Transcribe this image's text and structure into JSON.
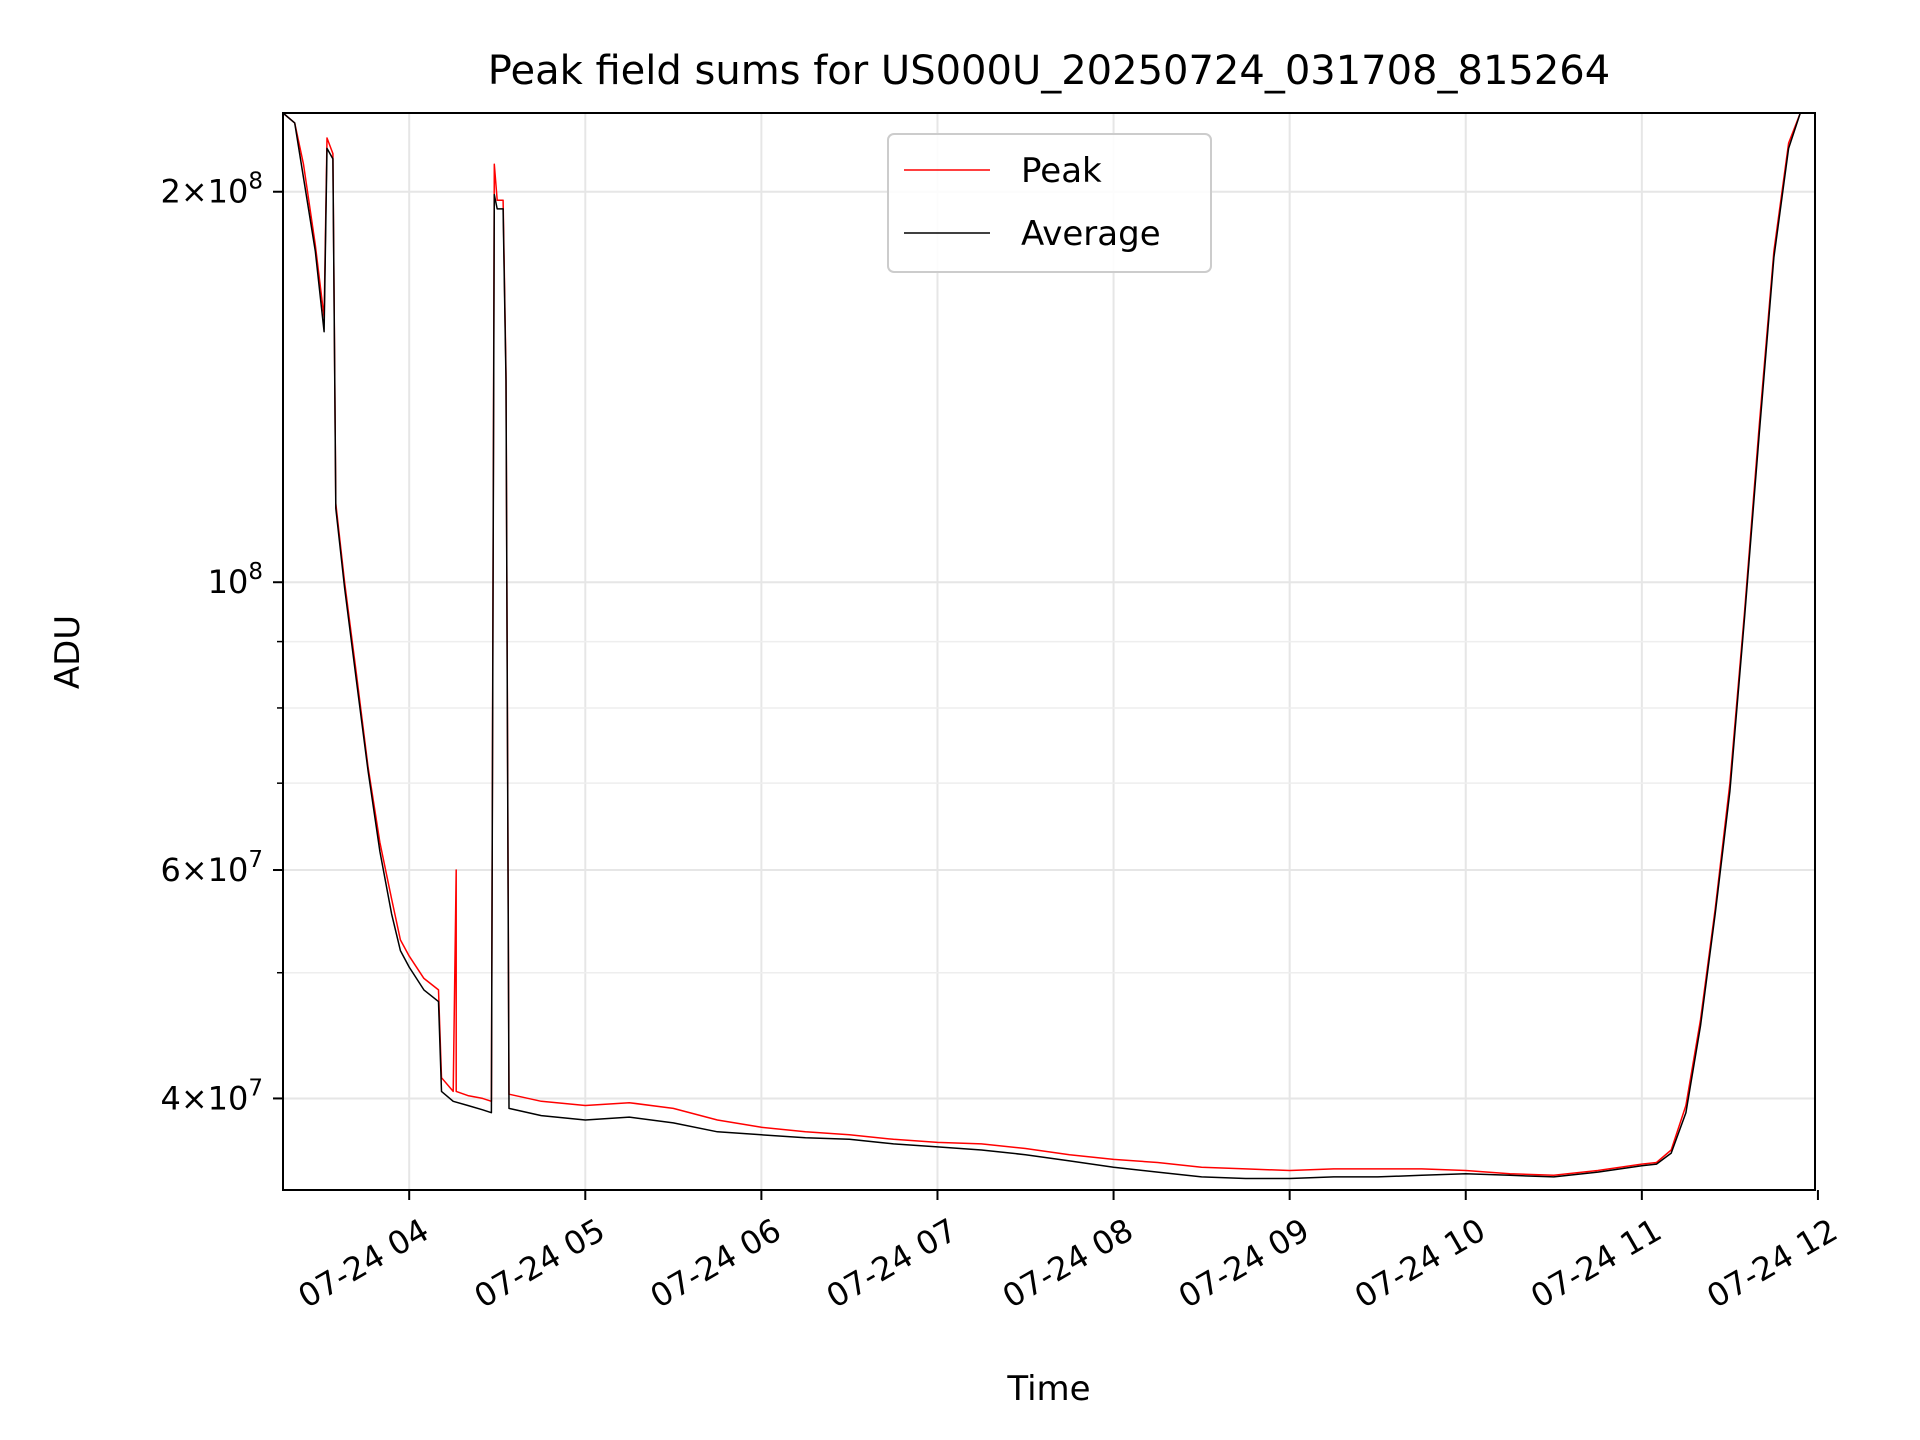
{
  "chart_data": {
    "type": "line",
    "title": "Peak field sums for US000U_20250724_031708_815264",
    "xlabel": "Time",
    "ylabel": "ADU",
    "x_scale": "time",
    "y_scale": "log",
    "xlim": [
      "07-24 03:17",
      "07-24 11:59"
    ],
    "ylim": [
      34000000,
      230000000
    ],
    "grid": true,
    "legend_position": "upper center",
    "x_ticks": [
      {
        "value": "07-24 04:00",
        "label": "07-24 04"
      },
      {
        "value": "07-24 05:00",
        "label": "07-24 05"
      },
      {
        "value": "07-24 06:00",
        "label": "07-24 06"
      },
      {
        "value": "07-24 07:00",
        "label": "07-24 07"
      },
      {
        "value": "07-24 08:00",
        "label": "07-24 08"
      },
      {
        "value": "07-24 09:00",
        "label": "07-24 09"
      },
      {
        "value": "07-24 10:00",
        "label": "07-24 10"
      },
      {
        "value": "07-24 11:00",
        "label": "07-24 11"
      },
      {
        "value": "07-24 12:00",
        "label": "07-24 12"
      }
    ],
    "y_major_ticks": [
      {
        "value": 40000000,
        "mant": "4",
        "exp": "7"
      },
      {
        "value": 60000000,
        "mant": "6",
        "exp": "7"
      },
      {
        "value": 100000000,
        "mant": "",
        "exp": "8"
      },
      {
        "value": 200000000,
        "mant": "2",
        "exp": "8"
      }
    ],
    "y_minor_ticks": [
      50000000,
      70000000,
      80000000,
      90000000
    ],
    "series": [
      {
        "name": "Peak",
        "color": "#ff0000",
        "points": [
          [
            "07-24 03:17",
            230000000
          ],
          [
            "07-24 03:21",
            226000000
          ],
          [
            "07-24 03:24",
            210000000
          ],
          [
            "07-24 03:28",
            182000000
          ],
          [
            "07-24 03:31",
            160000000
          ],
          [
            "07-24 03:32",
            220000000
          ],
          [
            "07-24 03:34",
            214000000
          ],
          [
            "07-24 03:35",
            115000000
          ],
          [
            "07-24 03:38",
            100000000
          ],
          [
            "07-24 03:42",
            85000000
          ],
          [
            "07-24 03:46",
            72000000
          ],
          [
            "07-24 03:50",
            63000000
          ],
          [
            "07-24 03:54",
            57000000
          ],
          [
            "07-24 03:57",
            53000000
          ],
          [
            "07-24 04:00",
            51500000
          ],
          [
            "07-24 04:05",
            49500000
          ],
          [
            "07-24 04:10",
            48500000
          ],
          [
            "07-24 04:11",
            41500000
          ],
          [
            "07-24 04:15",
            40500000
          ],
          [
            "07-24 04:16",
            60000000
          ],
          [
            "07-24 04:16",
            40500000
          ],
          [
            "07-24 04:20",
            40200000
          ],
          [
            "07-24 04:25",
            40000000
          ],
          [
            "07-24 04:28",
            39800000
          ],
          [
            "07-24 04:29",
            210000000
          ],
          [
            "07-24 04:30",
            197000000
          ],
          [
            "07-24 04:32",
            197000000
          ],
          [
            "07-24 04:33",
            145000000
          ],
          [
            "07-24 04:34",
            40300000
          ],
          [
            "07-24 04:45",
            39800000
          ],
          [
            "07-24 05:00",
            39500000
          ],
          [
            "07-24 05:15",
            39700000
          ],
          [
            "07-24 05:30",
            39300000
          ],
          [
            "07-24 05:45",
            38500000
          ],
          [
            "07-24 06:00",
            38000000
          ],
          [
            "07-24 06:15",
            37700000
          ],
          [
            "07-24 06:30",
            37500000
          ],
          [
            "07-24 06:45",
            37200000
          ],
          [
            "07-24 07:00",
            37000000
          ],
          [
            "07-24 07:15",
            36900000
          ],
          [
            "07-24 07:30",
            36600000
          ],
          [
            "07-24 07:45",
            36200000
          ],
          [
            "07-24 08:00",
            35900000
          ],
          [
            "07-24 08:15",
            35700000
          ],
          [
            "07-24 08:30",
            35400000
          ],
          [
            "07-24 08:45",
            35300000
          ],
          [
            "07-24 09:00",
            35200000
          ],
          [
            "07-24 09:15",
            35300000
          ],
          [
            "07-24 09:30",
            35300000
          ],
          [
            "07-24 09:45",
            35300000
          ],
          [
            "07-24 10:00",
            35200000
          ],
          [
            "07-24 10:15",
            35000000
          ],
          [
            "07-24 10:30",
            34900000
          ],
          [
            "07-24 10:45",
            35200000
          ],
          [
            "07-24 11:00",
            35600000
          ],
          [
            "07-24 11:05",
            35700000
          ],
          [
            "07-24 11:10",
            36500000
          ],
          [
            "07-24 11:15",
            39500000
          ],
          [
            "07-24 11:20",
            46000000
          ],
          [
            "07-24 11:25",
            56000000
          ],
          [
            "07-24 11:30",
            70000000
          ],
          [
            "07-24 11:35",
            95000000
          ],
          [
            "07-24 11:40",
            132000000
          ],
          [
            "07-24 11:45",
            180000000
          ],
          [
            "07-24 11:50",
            218000000
          ],
          [
            "07-24 11:54",
            230000000
          ],
          [
            "07-24 11:59",
            230000000
          ]
        ]
      },
      {
        "name": "Average",
        "color": "#000000",
        "points": [
          [
            "07-24 03:17",
            230000000
          ],
          [
            "07-24 03:21",
            226000000
          ],
          [
            "07-24 03:24",
            205000000
          ],
          [
            "07-24 03:28",
            180000000
          ],
          [
            "07-24 03:31",
            156000000
          ],
          [
            "07-24 03:32",
            216000000
          ],
          [
            "07-24 03:34",
            212000000
          ],
          [
            "07-24 03:35",
            114000000
          ],
          [
            "07-24 03:38",
            99000000
          ],
          [
            "07-24 03:42",
            84000000
          ],
          [
            "07-24 03:46",
            71500000
          ],
          [
            "07-24 03:50",
            62000000
          ],
          [
            "07-24 03:54",
            55500000
          ],
          [
            "07-24 03:57",
            52000000
          ],
          [
            "07-24 04:00",
            50500000
          ],
          [
            "07-24 04:05",
            48500000
          ],
          [
            "07-24 04:10",
            47500000
          ],
          [
            "07-24 04:11",
            40500000
          ],
          [
            "07-24 04:15",
            39800000
          ],
          [
            "07-24 04:20",
            39500000
          ],
          [
            "07-24 04:25",
            39200000
          ],
          [
            "07-24 04:28",
            39000000
          ],
          [
            "07-24 04:29",
            199000000
          ],
          [
            "07-24 04:30",
            194000000
          ],
          [
            "07-24 04:32",
            194000000
          ],
          [
            "07-24 04:33",
            143000000
          ],
          [
            "07-24 04:34",
            39300000
          ],
          [
            "07-24 04:45",
            38800000
          ],
          [
            "07-24 05:00",
            38500000
          ],
          [
            "07-24 05:15",
            38700000
          ],
          [
            "07-24 05:30",
            38300000
          ],
          [
            "07-24 05:45",
            37700000
          ],
          [
            "07-24 06:00",
            37500000
          ],
          [
            "07-24 06:15",
            37300000
          ],
          [
            "07-24 06:30",
            37200000
          ],
          [
            "07-24 06:45",
            36900000
          ],
          [
            "07-24 07:00",
            36700000
          ],
          [
            "07-24 07:15",
            36500000
          ],
          [
            "07-24 07:30",
            36200000
          ],
          [
            "07-24 07:45",
            35800000
          ],
          [
            "07-24 08:00",
            35400000
          ],
          [
            "07-24 08:15",
            35100000
          ],
          [
            "07-24 08:30",
            34800000
          ],
          [
            "07-24 08:45",
            34700000
          ],
          [
            "07-24 09:00",
            34700000
          ],
          [
            "07-24 09:15",
            34800000
          ],
          [
            "07-24 09:30",
            34800000
          ],
          [
            "07-24 09:45",
            34900000
          ],
          [
            "07-24 10:00",
            35000000
          ],
          [
            "07-24 10:15",
            34900000
          ],
          [
            "07-24 10:30",
            34800000
          ],
          [
            "07-24 10:45",
            35100000
          ],
          [
            "07-24 11:00",
            35500000
          ],
          [
            "07-24 11:05",
            35600000
          ],
          [
            "07-24 11:10",
            36300000
          ],
          [
            "07-24 11:15",
            39000000
          ],
          [
            "07-24 11:20",
            45500000
          ],
          [
            "07-24 11:25",
            55500000
          ],
          [
            "07-24 11:30",
            69000000
          ],
          [
            "07-24 11:35",
            94000000
          ],
          [
            "07-24 11:40",
            130000000
          ],
          [
            "07-24 11:45",
            178000000
          ],
          [
            "07-24 11:50",
            216000000
          ],
          [
            "07-24 11:54",
            230000000
          ],
          [
            "07-24 11:59",
            230000000
          ]
        ]
      }
    ]
  }
}
